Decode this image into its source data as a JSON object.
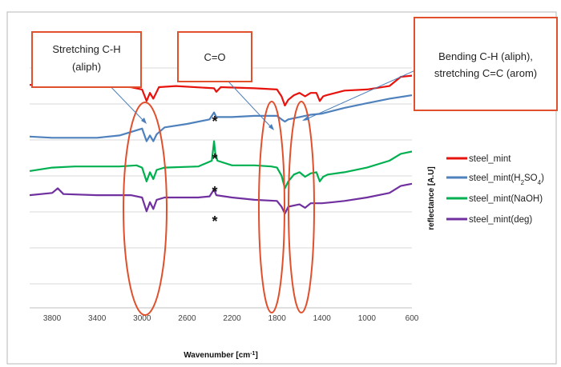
{
  "chart_data": {
    "type": "line",
    "title": "",
    "xlabel": "Wavenumber [cm",
    "xlabel_sup": "-1",
    "xlabel_close": "]",
    "ylabel": "reflectance [A.U]",
    "xlim": [
      4000,
      600
    ],
    "x_reversed": true,
    "xticks": [
      3800,
      3400,
      3000,
      2600,
      2200,
      1800,
      1400,
      1000,
      600
    ],
    "grid": true,
    "legend_position": "right",
    "series": [
      {
        "name": "steel_mint",
        "color": "#e8120c",
        "points": [
          [
            4000,
            0.54
          ],
          [
            3800,
            0.53
          ],
          [
            3400,
            0.53
          ],
          [
            3100,
            0.52
          ],
          [
            3000,
            0.5
          ],
          [
            2960,
            0.4
          ],
          [
            2930,
            0.47
          ],
          [
            2900,
            0.42
          ],
          [
            2870,
            0.48
          ],
          [
            2850,
            0.52
          ],
          [
            2700,
            0.53
          ],
          [
            2360,
            0.51
          ],
          [
            2340,
            0.48
          ],
          [
            2300,
            0.52
          ],
          [
            2000,
            0.51
          ],
          [
            1800,
            0.5
          ],
          [
            1760,
            0.44
          ],
          [
            1730,
            0.36
          ],
          [
            1700,
            0.41
          ],
          [
            1650,
            0.45
          ],
          [
            1600,
            0.47
          ],
          [
            1550,
            0.44
          ],
          [
            1500,
            0.47
          ],
          [
            1450,
            0.47
          ],
          [
            1420,
            0.4
          ],
          [
            1390,
            0.44
          ],
          [
            1360,
            0.45
          ],
          [
            1200,
            0.49
          ],
          [
            1000,
            0.5
          ],
          [
            800,
            0.53
          ],
          [
            700,
            0.61
          ],
          [
            600,
            0.62
          ]
        ]
      },
      {
        "name": "steel_mint(H2SO4)",
        "color": "#4f81bd",
        "points": [
          [
            4000,
            0.09
          ],
          [
            3800,
            0.08
          ],
          [
            3400,
            0.08
          ],
          [
            3200,
            0.1
          ],
          [
            3000,
            0.16
          ],
          [
            2960,
            0.05
          ],
          [
            2930,
            0.1
          ],
          [
            2900,
            0.05
          ],
          [
            2870,
            0.11
          ],
          [
            2800,
            0.17
          ],
          [
            2600,
            0.2
          ],
          [
            2400,
            0.24
          ],
          [
            2360,
            0.3
          ],
          [
            2340,
            0.26
          ],
          [
            2200,
            0.26
          ],
          [
            2000,
            0.27
          ],
          [
            1800,
            0.27
          ],
          [
            1760,
            0.24
          ],
          [
            1730,
            0.22
          ],
          [
            1700,
            0.24
          ],
          [
            1600,
            0.26
          ],
          [
            1500,
            0.28
          ],
          [
            1400,
            0.29
          ],
          [
            1200,
            0.34
          ],
          [
            1000,
            0.38
          ],
          [
            800,
            0.42
          ],
          [
            600,
            0.45
          ]
        ]
      },
      {
        "name": "steel_mint(NaOH)",
        "color": "#00b050",
        "points": [
          [
            4000,
            -0.21
          ],
          [
            3800,
            -0.18
          ],
          [
            3600,
            -0.17
          ],
          [
            3400,
            -0.17
          ],
          [
            3200,
            -0.17
          ],
          [
            3050,
            -0.16
          ],
          [
            3000,
            -0.18
          ],
          [
            2960,
            -0.3
          ],
          [
            2930,
            -0.22
          ],
          [
            2900,
            -0.28
          ],
          [
            2870,
            -0.2
          ],
          [
            2800,
            -0.18
          ],
          [
            2500,
            -0.17
          ],
          [
            2380,
            -0.12
          ],
          [
            2360,
            0.05
          ],
          [
            2350,
            -0.05
          ],
          [
            2330,
            -0.12
          ],
          [
            2200,
            -0.16
          ],
          [
            2000,
            -0.16
          ],
          [
            1850,
            -0.17
          ],
          [
            1800,
            -0.18
          ],
          [
            1760,
            -0.25
          ],
          [
            1730,
            -0.36
          ],
          [
            1700,
            -0.3
          ],
          [
            1650,
            -0.24
          ],
          [
            1600,
            -0.22
          ],
          [
            1550,
            -0.26
          ],
          [
            1500,
            -0.23
          ],
          [
            1450,
            -0.22
          ],
          [
            1420,
            -0.3
          ],
          [
            1390,
            -0.26
          ],
          [
            1350,
            -0.24
          ],
          [
            1200,
            -0.22
          ],
          [
            1000,
            -0.18
          ],
          [
            800,
            -0.12
          ],
          [
            700,
            -0.06
          ],
          [
            600,
            -0.04
          ]
        ]
      },
      {
        "name": "steel_mint(deg)",
        "color": "#7030a0",
        "points": [
          [
            4000,
            -0.42
          ],
          [
            3800,
            -0.4
          ],
          [
            3750,
            -0.36
          ],
          [
            3700,
            -0.41
          ],
          [
            3400,
            -0.42
          ],
          [
            3100,
            -0.42
          ],
          [
            3000,
            -0.44
          ],
          [
            2960,
            -0.56
          ],
          [
            2930,
            -0.48
          ],
          [
            2900,
            -0.54
          ],
          [
            2870,
            -0.46
          ],
          [
            2800,
            -0.44
          ],
          [
            2500,
            -0.44
          ],
          [
            2400,
            -0.43
          ],
          [
            2360,
            -0.37
          ],
          [
            2340,
            -0.42
          ],
          [
            2200,
            -0.44
          ],
          [
            2000,
            -0.46
          ],
          [
            1800,
            -0.47
          ],
          [
            1760,
            -0.52
          ],
          [
            1730,
            -0.58
          ],
          [
            1700,
            -0.52
          ],
          [
            1600,
            -0.5
          ],
          [
            1550,
            -0.53
          ],
          [
            1500,
            -0.49
          ],
          [
            1400,
            -0.49
          ],
          [
            1300,
            -0.48
          ],
          [
            1200,
            -0.47
          ],
          [
            1000,
            -0.44
          ],
          [
            800,
            -0.4
          ],
          [
            700,
            -0.34
          ],
          [
            600,
            -0.32
          ]
        ]
      }
    ],
    "annotations": {
      "callouts": [
        {
          "lines": [
            "Stretching C-H",
            "(aliph)"
          ]
        },
        {
          "lines": [
            "C=O"
          ]
        },
        {
          "lines": [
            "Bending C-H (aliph),",
            "stretching C=C (arom)"
          ]
        }
      ],
      "star_text": "*",
      "highlighted_regions_cm1": [
        [
          3090,
          2770
        ],
        [
          1880,
          1700
        ],
        [
          1680,
          1520
        ]
      ],
      "star_positions_cm1": [
        2350,
        2350,
        2350,
        2350
      ]
    },
    "legend": [
      {
        "label": "steel_mint",
        "sub": "",
        "suffix": ""
      },
      {
        "label": "steel_mint(H",
        "sub1": "2",
        "mid": "SO",
        "sub2": "4",
        "suffix": ")"
      },
      {
        "label": "steel_mint(NaOH)",
        "sub": "",
        "suffix": ""
      },
      {
        "label": "steel_mint(deg)",
        "sub": "",
        "suffix": ""
      }
    ]
  }
}
